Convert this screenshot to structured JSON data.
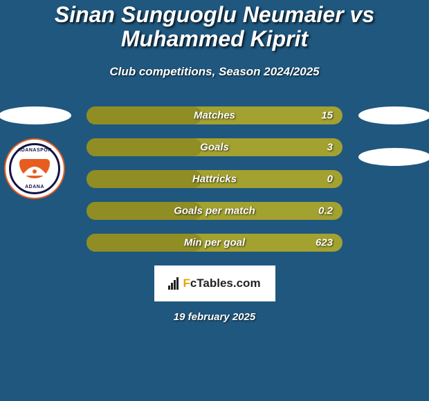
{
  "background_color": "#1f577e",
  "title": {
    "text": "Sinan Sunguoglu Neumaier vs Muhammed Kiprit",
    "font_size": 32,
    "color": "#ffffff"
  },
  "subtitle": {
    "text": "Club competitions, Season 2024/2025",
    "font_size": 17,
    "color": "#ffffff"
  },
  "left_player": {
    "flag_color": "#ffffff",
    "club": "ADANASPOR"
  },
  "right_player": {
    "flag_color": "#ffffff"
  },
  "bar_style": {
    "track_color": "#a3a12f",
    "fill_color": "#8f8d24",
    "label_font_size": 15,
    "value_font_size": 15
  },
  "bars": [
    {
      "label": "Matches",
      "value": "15",
      "fill_pct": 45
    },
    {
      "label": "Goals",
      "value": "3",
      "fill_pct": 45
    },
    {
      "label": "Hattricks",
      "value": "0",
      "fill_pct": 45
    },
    {
      "label": "Goals per match",
      "value": "0.2",
      "fill_pct": 45
    },
    {
      "label": "Min per goal",
      "value": "623",
      "fill_pct": 45
    }
  ],
  "footer": {
    "label": "FcTables.com",
    "color_f": "#e7a400",
    "color_rest": "#222222",
    "bar_color": "#222222"
  },
  "date": {
    "text": "19 february 2025",
    "font_size": 15
  }
}
